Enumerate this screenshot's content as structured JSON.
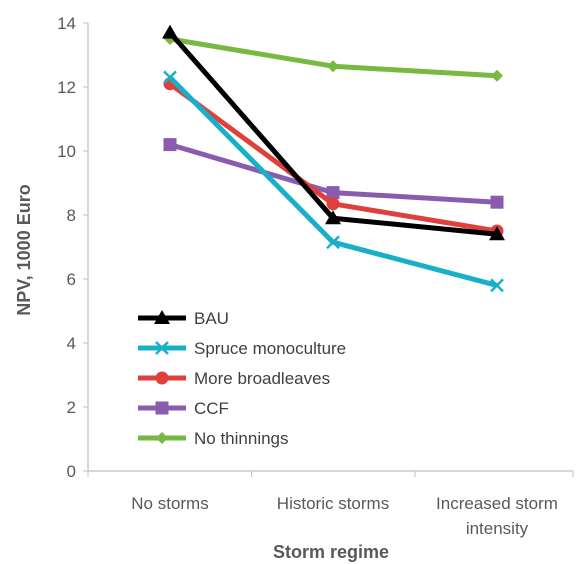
{
  "chart_data": {
    "type": "line",
    "categories": [
      "No storms",
      "Historic storms",
      "Increased storm intensity"
    ],
    "category_lines": [
      [
        "No storms"
      ],
      [
        "Historic storms"
      ],
      [
        "Increased storm",
        "intensity"
      ]
    ],
    "xlabel": "Storm regime",
    "ylabel": "NPV, 1000 Euro",
    "ylim": [
      0,
      14
    ],
    "yticks": [
      0,
      2,
      4,
      6,
      8,
      10,
      12,
      14
    ],
    "grid": false,
    "legend_position": "bottom-left",
    "series": [
      {
        "name": "BAU",
        "values": [
          13.7,
          7.9,
          7.4
        ],
        "color": "#000000",
        "marker": "triangle"
      },
      {
        "name": "Spruce monoculture",
        "values": [
          12.3,
          7.15,
          5.8
        ],
        "color": "#17b0c8",
        "marker": "x"
      },
      {
        "name": "More broadleaves",
        "values": [
          12.1,
          8.35,
          7.5
        ],
        "color": "#e0403c",
        "marker": "circle"
      },
      {
        "name": "CCF",
        "values": [
          10.2,
          8.7,
          8.4
        ],
        "color": "#8a5cb0",
        "marker": "square"
      },
      {
        "name": "No thinnings",
        "values": [
          13.5,
          12.65,
          12.35
        ],
        "color": "#76b943",
        "marker": "diamond"
      }
    ]
  }
}
